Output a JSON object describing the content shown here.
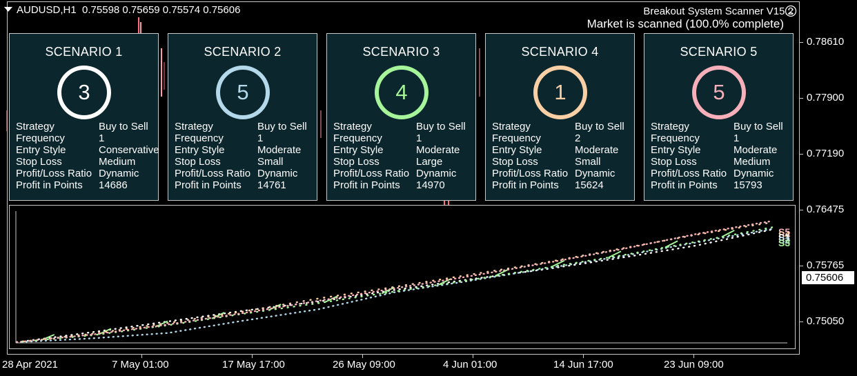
{
  "chart_header": {
    "symbol": "AUDUSD,H1",
    "ohlc": "0.75598 0.75659 0.75574 0.75606"
  },
  "scanner": {
    "title": "Breakout System Scanner V15.2",
    "status": "Market is scanned (100.0% complete)",
    "status_icon": "sad-face-icon"
  },
  "row_labels": [
    "Strategy",
    "Frequency",
    "Entry Style",
    "Stop Loss",
    "Profit/Loss Ratio",
    "Profit in Points"
  ],
  "scenarios": [
    {
      "title": "SCENARIO 1",
      "count": "3",
      "color": "#ffffff",
      "values": [
        "Buy to Sell",
        "1",
        "Conservative",
        "Medium",
        "Dynamic",
        "14686"
      ]
    },
    {
      "title": "SCENARIO 2",
      "count": "5",
      "color": "#b3d9ea",
      "values": [
        "Buy to Sell",
        "1",
        "Moderate",
        "Small",
        "Dynamic",
        "14761"
      ]
    },
    {
      "title": "SCENARIO 3",
      "count": "4",
      "color": "#a7f59a",
      "values": [
        "Buy to Sell",
        "1",
        "Moderate",
        "Large",
        "Dynamic",
        "14970"
      ]
    },
    {
      "title": "SCENARIO 4",
      "count": "1",
      "color": "#f9cfa6",
      "values": [
        "Buy to Sell",
        "2",
        "Moderate",
        "Small",
        "Dynamic",
        "15624"
      ]
    },
    {
      "title": "SCENARIO 5",
      "count": "5",
      "color": "#f7b0b9",
      "values": [
        "Buy to Sell",
        "1",
        "Moderate",
        "Medium",
        "Dynamic",
        "15793"
      ]
    }
  ],
  "price_axis": {
    "labels": [
      "0.78610",
      "0.77900",
      "0.77190",
      "0.76475",
      "0.75765",
      "0.75050"
    ],
    "current_price": "0.75606"
  },
  "time_axis": {
    "labels": [
      "28 Apr 2021",
      "7 May 01:00",
      "17 May 17:00",
      "26 May 09:00",
      "4 Jun 01:00",
      "14 Jun 17:00",
      "23 Jun 09:00"
    ]
  },
  "equity_markers": [
    "S5",
    "S4",
    "S1",
    "S2",
    "S3"
  ],
  "chart_data": {
    "type": "line",
    "title": "",
    "xlabel": "",
    "ylabel": "",
    "grid": false,
    "legend": "none",
    "x": [
      0,
      10,
      20,
      30,
      40,
      50,
      60,
      70,
      80,
      90,
      100
    ],
    "ylim": [
      0,
      16000
    ],
    "series": [
      {
        "color": "#ffffff",
        "values": [
          0,
          1300,
          2700,
          4100,
          5300,
          6800,
          8200,
          9500,
          11000,
          12600,
          14686
        ]
      },
      {
        "color": "#b3d9ea",
        "values": [
          0,
          500,
          1200,
          2800,
          4300,
          6500,
          8000,
          9600,
          11200,
          13000,
          14761
        ]
      },
      {
        "color": "#a7f59a",
        "values": [
          0,
          900,
          2200,
          3700,
          5100,
          6600,
          8100,
          9700,
          11300,
          13100,
          14970
        ]
      },
      {
        "color": "#f9cfa6",
        "values": [
          0,
          1100,
          2500,
          4000,
          5700,
          7200,
          8800,
          10400,
          12200,
          14000,
          15624
        ]
      },
      {
        "color": "#f7b0b9",
        "values": [
          0,
          1000,
          2300,
          3800,
          5400,
          7000,
          8600,
          10300,
          12100,
          14100,
          15793
        ]
      }
    ]
  }
}
